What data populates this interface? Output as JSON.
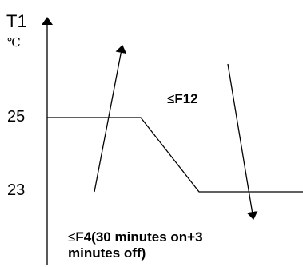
{
  "axis": {
    "y_label": "T1",
    "unit": "℃",
    "ticks": [
      {
        "label": "25",
        "value": 25
      },
      {
        "label": "23",
        "value": 23
      }
    ]
  },
  "curve": {
    "points": [
      {
        "phase": "start",
        "value": 25
      },
      {
        "phase": "plateau-end",
        "value": 25
      },
      {
        "phase": "ramp-end",
        "value": 23
      },
      {
        "phase": "end",
        "value": 23
      }
    ]
  },
  "annotations": {
    "f12": {
      "symbol": "≤",
      "text": "F12"
    },
    "f4": {
      "symbol": "≤",
      "line1": "F4(30 minutes on+3",
      "line2": "minutes off)"
    }
  },
  "colors": {
    "ink": "#000000",
    "background": "#ffffff"
  }
}
